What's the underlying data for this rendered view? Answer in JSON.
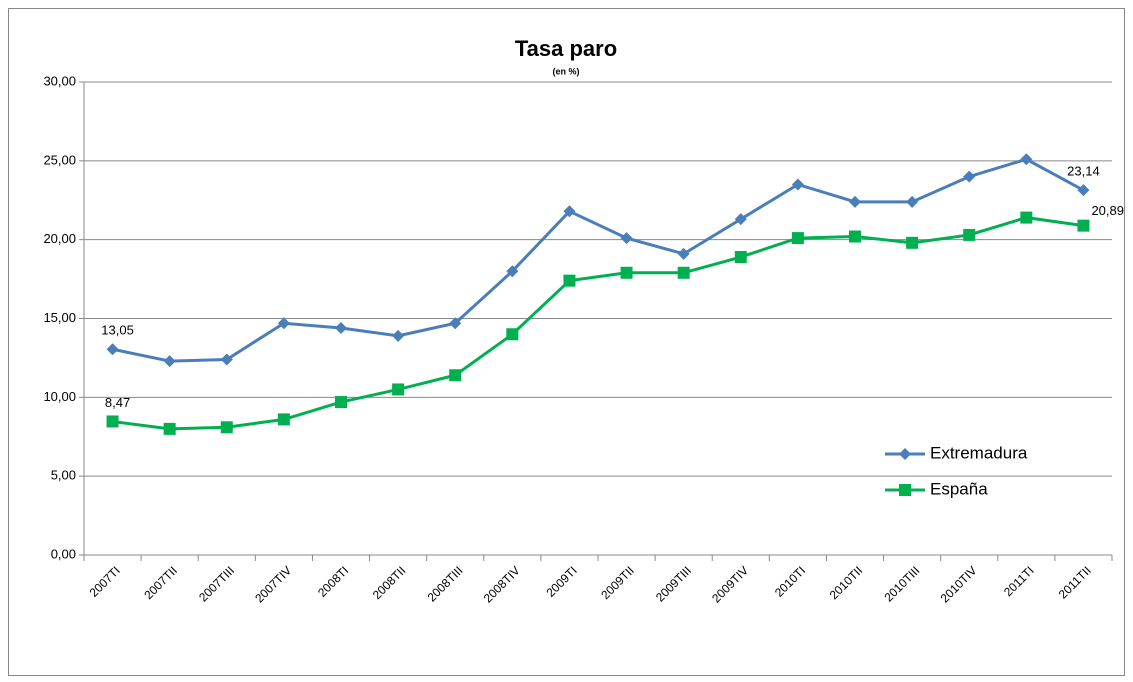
{
  "chart_data": {
    "type": "line",
    "title": "Tasa paro",
    "subtitle": "(en %)",
    "categories": [
      "2007TI",
      "2007TII",
      "2007TIII",
      "2007TIV",
      "2008TI",
      "2008TII",
      "2008TIII",
      "2008TIV",
      "2009TI",
      "2009TII",
      "2009TIII",
      "2009TIV",
      "2010TI",
      "2010TII",
      "2010TIII",
      "2010TIV",
      "2011TI",
      "2011TII"
    ],
    "series": [
      {
        "name": "Extremadura",
        "color": "#4a7ebb",
        "marker": "diamond",
        "values": [
          13.05,
          12.3,
          12.4,
          14.7,
          14.4,
          13.9,
          14.7,
          18.0,
          21.8,
          20.1,
          19.1,
          21.3,
          23.5,
          22.4,
          22.4,
          24.0,
          25.1,
          23.14
        ],
        "value_labels": [
          "13,05",
          null,
          null,
          null,
          null,
          null,
          null,
          null,
          null,
          null,
          null,
          null,
          null,
          null,
          null,
          null,
          null,
          "23,14"
        ]
      },
      {
        "name": "España",
        "color": "#00b050",
        "marker": "square",
        "values": [
          8.47,
          8.0,
          8.1,
          8.6,
          9.7,
          10.5,
          11.4,
          14.0,
          17.4,
          17.9,
          17.9,
          18.9,
          20.1,
          20.2,
          19.8,
          20.3,
          21.4,
          20.89
        ],
        "value_labels": [
          "8,47",
          null,
          null,
          null,
          null,
          null,
          null,
          null,
          null,
          null,
          null,
          null,
          null,
          null,
          null,
          null,
          null,
          "20,89"
        ]
      }
    ],
    "ylim": [
      0,
      30
    ],
    "yticks": [
      {
        "value": 0,
        "label": "0,00"
      },
      {
        "value": 5,
        "label": "5,00"
      },
      {
        "value": 10,
        "label": "10,00"
      },
      {
        "value": 15,
        "label": "15,00"
      },
      {
        "value": 20,
        "label": "20,00"
      },
      {
        "value": 25,
        "label": "25,00"
      },
      {
        "value": 30,
        "label": "30,00"
      }
    ],
    "grid": true,
    "legend": "lower right"
  }
}
